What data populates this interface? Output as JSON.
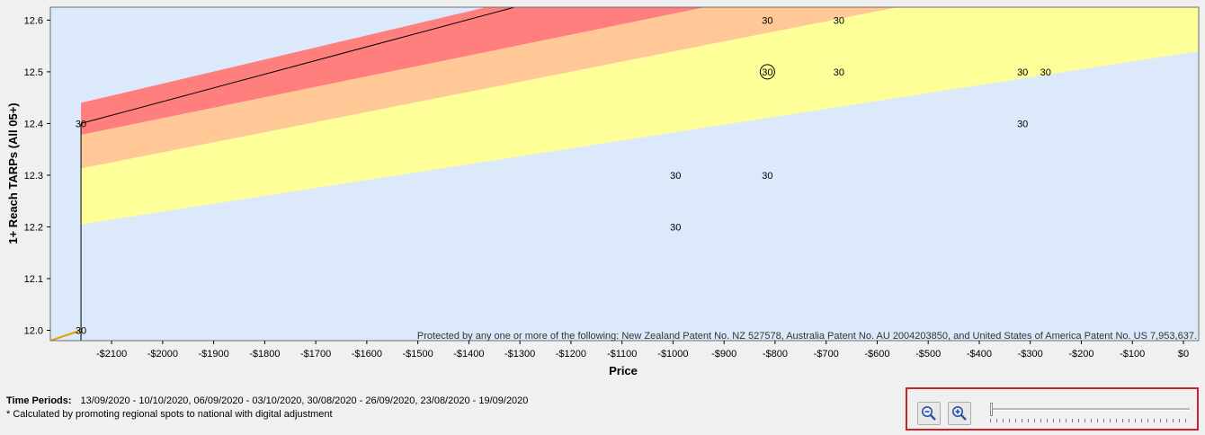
{
  "chart_data": {
    "type": "scatter",
    "xlabel": "Price",
    "ylabel": "1+ Reach TARPs (All 05+)",
    "xlim": [
      -2220,
      30
    ],
    "ylim": [
      11.98,
      12.625
    ],
    "x_ticks": [
      -2100,
      -2000,
      -1900,
      -1800,
      -1700,
      -1600,
      -1500,
      -1400,
      -1300,
      -1200,
      -1100,
      -1000,
      -900,
      -800,
      -700,
      -600,
      -500,
      -400,
      -300,
      -200,
      -100,
      0
    ],
    "x_tick_labels": [
      "-$2100",
      "-$2000",
      "-$1900",
      "-$1800",
      "-$1700",
      "-$1600",
      "-$1500",
      "-$1400",
      "-$1300",
      "-$1200",
      "-$1100",
      "-$1000",
      "-$900",
      "-$800",
      "-$700",
      "-$600",
      "-$500",
      "-$400",
      "-$300",
      "-$200",
      "-$100",
      "$0"
    ],
    "y_ticks": [
      12.0,
      12.1,
      12.2,
      12.3,
      12.4,
      12.5,
      12.6
    ],
    "y_tick_labels": [
      "12.0",
      "12.1",
      "12.2",
      "12.3",
      "12.4",
      "12.5",
      "12.6"
    ],
    "points": [
      {
        "x": -2160,
        "y": 12.4,
        "label": "30"
      },
      {
        "x": -2160,
        "y": 12.0,
        "label": "30"
      },
      {
        "x": -995,
        "y": 12.3,
        "label": "30"
      },
      {
        "x": -995,
        "y": 12.2,
        "label": "30"
      },
      {
        "x": -815,
        "y": 12.6,
        "label": "30"
      },
      {
        "x": -815,
        "y": 12.5,
        "label": "30",
        "highlight": true
      },
      {
        "x": -815,
        "y": 12.3,
        "label": "30"
      },
      {
        "x": -675,
        "y": 12.6,
        "label": "30"
      },
      {
        "x": -675,
        "y": 12.5,
        "label": "30"
      },
      {
        "x": -315,
        "y": 12.5,
        "label": "30"
      },
      {
        "x": -270,
        "y": 12.5,
        "label": "30"
      },
      {
        "x": -315,
        "y": 12.4,
        "label": "30"
      }
    ],
    "bands": [
      {
        "name": "red",
        "color": "#ff7f7f",
        "lower": [
          [
            -2160,
            12.378
          ],
          [
            30,
            12.82
          ]
        ],
        "upper": [
          [
            -2160,
            12.44
          ],
          [
            30,
            12.95
          ]
        ]
      },
      {
        "name": "orange",
        "color": "#ffc896",
        "lower": [
          [
            -2160,
            12.313
          ],
          [
            30,
            12.74
          ]
        ],
        "upper": [
          [
            -2160,
            12.378
          ],
          [
            30,
            12.82
          ]
        ]
      },
      {
        "name": "yellow",
        "color": "#ffff99",
        "lower": [
          [
            -2160,
            12.205
          ],
          [
            30,
            12.54
          ]
        ],
        "upper": [
          [
            -2160,
            12.313
          ],
          [
            30,
            12.74
          ]
        ]
      }
    ],
    "trend_line": [
      [
        -2160,
        12.4
      ],
      [
        30,
        12.98
      ]
    ],
    "colors": {
      "plot_background": "#dbe9fb",
      "outside_background": "#f0f0f0"
    },
    "grid": false,
    "legend": "none",
    "annotation": "Protected by any one or more of the following: New Zealand Patent No. NZ 527578, Australia Patent No. AU 2004203850, and United States of America Patent No. US 7,953,637."
  },
  "footer": {
    "time_periods_label": "Time Periods:",
    "time_periods_value": "13/09/2020 - 10/10/2020, 06/09/2020 - 03/10/2020, 30/08/2020 - 26/09/2020, 23/08/2020 - 19/09/2020",
    "note": "* Calculated by promoting regional spots to national with digital adjustment"
  },
  "zoom": {
    "zoom_out_icon": "zoom-out-icon",
    "zoom_in_icon": "zoom-in-icon",
    "slider_level": 0
  }
}
